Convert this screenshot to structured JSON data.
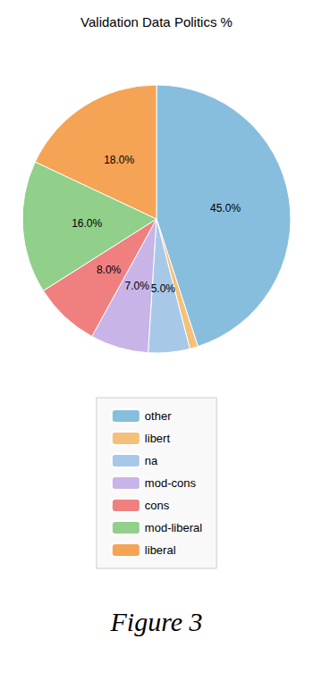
{
  "chart_data": {
    "type": "pie",
    "title": "Validation Data Politics %",
    "categories": [
      "other",
      "libert",
      "na",
      "mod-cons",
      "cons",
      "mod-liberal",
      "liberal"
    ],
    "values": [
      45.0,
      1.0,
      5.0,
      7.0,
      8.0,
      16.0,
      18.0
    ],
    "value_labels": [
      "45.0%",
      null,
      "5.0%",
      "7.0%",
      "8.0%",
      "16.0%",
      "18.0%"
    ],
    "colors": [
      "#87BEDE",
      "#F5C07A",
      "#A8C8E8",
      "#C9B4E8",
      "#F08080",
      "#90D08A",
      "#F5A355"
    ],
    "data_labels": true,
    "legend": "bottom",
    "annotations": [
      "Figure 3"
    ]
  }
}
